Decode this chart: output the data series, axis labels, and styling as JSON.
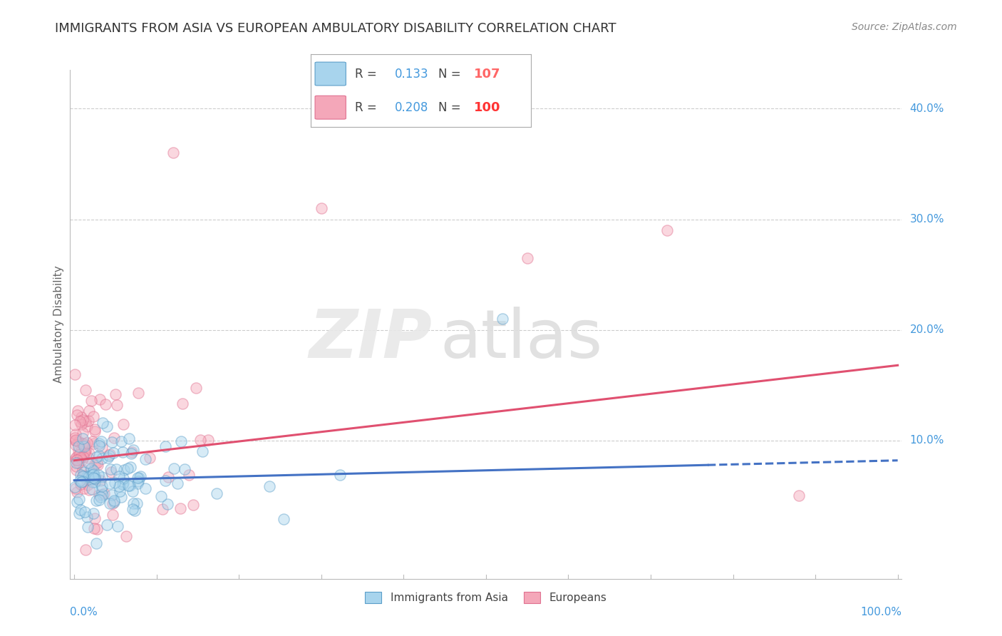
{
  "title": "IMMIGRANTS FROM ASIA VS EUROPEAN AMBULATORY DISABILITY CORRELATION CHART",
  "source": "Source: ZipAtlas.com",
  "ylabel": "Ambulatory Disability",
  "legend_r_asia": "0.133",
  "legend_n_asia": "107",
  "legend_r_euro": "0.208",
  "legend_n_euro": "100",
  "color_asia_fill": "#A8D4ED",
  "color_asia_edge": "#5B9EC9",
  "color_euro_fill": "#F4A7B9",
  "color_euro_edge": "#E07090",
  "color_asia_line": "#4472C4",
  "color_euro_line": "#E05070",
  "color_title": "#333333",
  "color_source": "#888888",
  "color_axis_label": "#666666",
  "color_tick_label": "#4499DD",
  "color_grid": "#CCCCCC",
  "color_legend_r": "#4499DD",
  "color_legend_n_asia": "#FF6666",
  "color_legend_n_euro": "#FF3333",
  "ytick_vals": [
    0.1,
    0.2,
    0.3,
    0.4
  ],
  "ytick_labels": [
    "10.0%",
    "20.0%",
    "30.0%",
    "40.0%"
  ],
  "xlim": [
    -0.005,
    1.005
  ],
  "ylim": [
    -0.025,
    0.435
  ],
  "marker_size": 120,
  "marker_alpha": 0.45,
  "title_fontsize": 13,
  "source_fontsize": 10,
  "tick_fontsize": 11,
  "ylabel_fontsize": 11
}
